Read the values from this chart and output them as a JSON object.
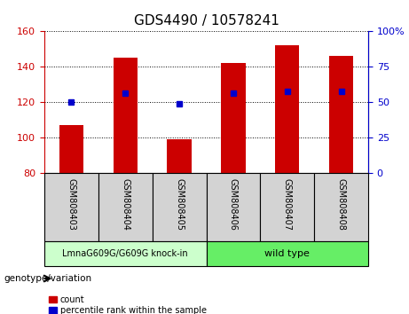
{
  "title": "GDS4490 / 10578241",
  "samples": [
    "GSM808403",
    "GSM808404",
    "GSM808405",
    "GSM808406",
    "GSM808407",
    "GSM808408"
  ],
  "bar_heights": [
    107,
    145,
    99,
    142,
    152,
    146
  ],
  "bar_base": 80,
  "blue_markers": [
    120,
    125,
    119,
    125,
    126,
    126
  ],
  "left_ylim": [
    80,
    160
  ],
  "right_ylim": [
    0,
    100
  ],
  "left_yticks": [
    80,
    100,
    120,
    140,
    160
  ],
  "right_yticks": [
    0,
    25,
    50,
    75,
    100
  ],
  "right_yticklabels": [
    "0",
    "25",
    "50",
    "75",
    "100%"
  ],
  "bar_color": "#cc0000",
  "blue_color": "#0000cc",
  "group1_label": "LmnaG609G/G609G knock-in",
  "group2_label": "wild type",
  "group1_color": "#ccffcc",
  "group2_color": "#66ee66",
  "group1_count": 3,
  "group2_count": 3,
  "genotype_label": "genotype/variation",
  "legend_count": "count",
  "legend_pct": "percentile rank within the sample",
  "bar_width": 0.45,
  "tick_color_left": "#cc0000",
  "tick_color_right": "#0000cc",
  "title_fontsize": 11,
  "tick_fontsize": 8,
  "sample_fontsize": 7,
  "group_fontsize": 7,
  "legend_fontsize": 7
}
